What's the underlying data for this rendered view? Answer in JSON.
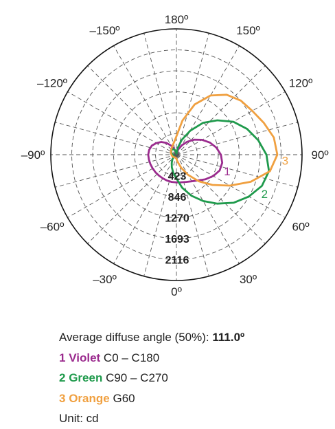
{
  "chart_data": {
    "type": "polar",
    "title": "",
    "angle_labels": [
      {
        "deg": 180,
        "text": "180º"
      },
      {
        "deg": 150,
        "text": "150º"
      },
      {
        "deg": -150,
        "text": "–150º"
      },
      {
        "deg": 120,
        "text": "120º"
      },
      {
        "deg": -120,
        "text": "–120º"
      },
      {
        "deg": 90,
        "text": "90º"
      },
      {
        "deg": -90,
        "text": "–90º"
      },
      {
        "deg": 60,
        "text": "60º"
      },
      {
        "deg": -60,
        "text": "–60º"
      },
      {
        "deg": 30,
        "text": "30º"
      },
      {
        "deg": -30,
        "text": "–30º"
      },
      {
        "deg": 0,
        "text": "0º"
      }
    ],
    "radial_ticks": [
      423,
      846,
      1270,
      1693,
      2116
    ],
    "radial_tick_labels": [
      "423",
      "846",
      "1270",
      "1693",
      "2116"
    ],
    "r_max": 2540,
    "grid": true,
    "series": [
      {
        "number": "1",
        "color": "#9b2b8e",
        "points": [
          [
            0,
            560
          ],
          [
            10,
            565
          ],
          [
            20,
            585
          ],
          [
            30,
            620
          ],
          [
            40,
            680
          ],
          [
            50,
            770
          ],
          [
            60,
            860
          ],
          [
            70,
            930
          ],
          [
            80,
            940
          ],
          [
            90,
            900
          ],
          [
            100,
            820
          ],
          [
            110,
            720
          ],
          [
            120,
            600
          ],
          [
            130,
            470
          ],
          [
            140,
            340
          ],
          [
            150,
            220
          ],
          [
            160,
            120
          ],
          [
            170,
            50
          ],
          [
            180,
            20
          ],
          [
            -170,
            50
          ],
          [
            -160,
            120
          ],
          [
            -150,
            210
          ],
          [
            -140,
            310
          ],
          [
            -130,
            400
          ],
          [
            -120,
            470
          ],
          [
            -110,
            530
          ],
          [
            -100,
            560
          ],
          [
            -90,
            570
          ],
          [
            -80,
            565
          ],
          [
            -70,
            560
          ],
          [
            -60,
            555
          ],
          [
            -50,
            552
          ],
          [
            -40,
            550
          ],
          [
            -30,
            552
          ],
          [
            -20,
            555
          ],
          [
            -10,
            558
          ]
        ]
      },
      {
        "number": "2",
        "color": "#1f9a4c",
        "points": [
          [
            0,
            480
          ],
          [
            10,
            680
          ],
          [
            20,
            880
          ],
          [
            30,
            1080
          ],
          [
            40,
            1290
          ],
          [
            50,
            1510
          ],
          [
            60,
            1690
          ],
          [
            70,
            1840
          ],
          [
            80,
            1900
          ],
          [
            90,
            1820
          ],
          [
            100,
            1680
          ],
          [
            110,
            1520
          ],
          [
            120,
            1330
          ],
          [
            130,
            1080
          ],
          [
            140,
            840
          ],
          [
            150,
            560
          ],
          [
            160,
            320
          ],
          [
            170,
            130
          ],
          [
            180,
            20
          ],
          [
            -170,
            60
          ],
          [
            -160,
            100
          ],
          [
            -150,
            130
          ],
          [
            -140,
            140
          ],
          [
            -130,
            130
          ],
          [
            -120,
            120
          ],
          [
            -110,
            105
          ],
          [
            -100,
            90
          ],
          [
            -90,
            75
          ],
          [
            -80,
            65
          ],
          [
            -70,
            60
          ],
          [
            -60,
            60
          ],
          [
            -50,
            80
          ],
          [
            -40,
            130
          ],
          [
            -30,
            190
          ],
          [
            -20,
            270
          ],
          [
            -10,
            370
          ]
        ]
      },
      {
        "number": "3",
        "color": "#f0a040",
        "points": [
          [
            0,
            80
          ],
          [
            10,
            150
          ],
          [
            20,
            280
          ],
          [
            30,
            470
          ],
          [
            40,
            700
          ],
          [
            50,
            950
          ],
          [
            60,
            1250
          ],
          [
            70,
            1600
          ],
          [
            80,
            1920
          ],
          [
            90,
            2040
          ],
          [
            100,
            2000
          ],
          [
            110,
            1880
          ],
          [
            120,
            1770
          ],
          [
            130,
            1700
          ],
          [
            140,
            1580
          ],
          [
            150,
            1380
          ],
          [
            160,
            1080
          ],
          [
            170,
            700
          ],
          [
            180,
            370
          ],
          [
            -170,
            260
          ],
          [
            -160,
            210
          ],
          [
            -150,
            180
          ],
          [
            -140,
            155
          ],
          [
            -130,
            140
          ],
          [
            -120,
            128
          ],
          [
            -110,
            118
          ],
          [
            -100,
            108
          ],
          [
            -90,
            100
          ],
          [
            -80,
            95
          ],
          [
            -70,
            88
          ],
          [
            -60,
            80
          ],
          [
            -50,
            74
          ],
          [
            -40,
            68
          ],
          [
            -30,
            64
          ],
          [
            -20,
            62
          ],
          [
            -10,
            68
          ]
        ]
      }
    ]
  },
  "legend": {
    "average_label": "Average diffuse angle (50%):",
    "average_value": "111.0º",
    "items": [
      {
        "number": "1",
        "name": "Violet",
        "range": "C0 – C180",
        "color": "#9b2b8e"
      },
      {
        "number": "2",
        "name": "Green",
        "range": "C90 – C270",
        "color": "#1f9a4c"
      },
      {
        "number": "3",
        "name": "Orange",
        "range": "G60",
        "color": "#f0a040"
      }
    ],
    "unit": "Unit: cd"
  }
}
